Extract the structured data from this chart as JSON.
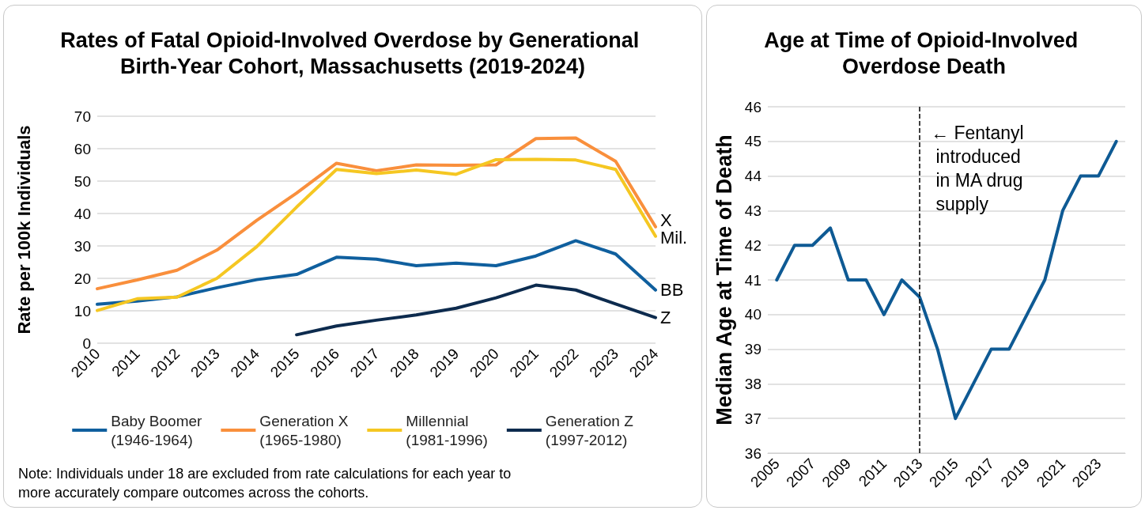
{
  "chart_data": [
    {
      "type": "line",
      "title": "Rates of Fatal Opioid-Involved Overdose by Generational Birth-Year Cohort, Massachusetts (2019-2024)",
      "ylabel": "Rate per 100k Individuals",
      "categories": [
        "2010",
        "2011",
        "2012",
        "2013",
        "2014",
        "2015",
        "2016",
        "2017",
        "2018",
        "2019",
        "2020",
        "2021",
        "2022",
        "2023",
        "2024"
      ],
      "series": [
        {
          "name": "Baby Boomer\n(1946-1964)",
          "color": "#0f5f9e",
          "values": [
            12.0,
            13.0,
            14.3,
            17.1,
            19.6,
            21.2,
            26.5,
            25.9,
            23.9,
            24.7,
            23.9,
            26.9,
            31.6,
            27.5,
            16.4
          ]
        },
        {
          "name": "Generation X\n(1965-1980)",
          "color": "#f98f3c",
          "values": [
            16.8,
            19.5,
            22.5,
            28.7,
            37.9,
            46.3,
            55.5,
            53.2,
            55.0,
            54.9,
            55.0,
            63.1,
            63.3,
            56.1,
            35.9
          ]
        },
        {
          "name": "Millennial\n(1981-1996)",
          "color": "#f5c722",
          "values": [
            10.1,
            13.7,
            14.2,
            20.0,
            29.8,
            42.0,
            53.6,
            52.3,
            53.4,
            52.1,
            56.6,
            56.7,
            56.5,
            53.6,
            33.0
          ]
        },
        {
          "name": "Generation Z\n(1997-2012)",
          "color": "#0d2b4e",
          "values": [
            null,
            null,
            null,
            null,
            null,
            2.6,
            5.3,
            7.1,
            8.7,
            10.8,
            14.0,
            17.9,
            16.4,
            12.1,
            7.9
          ]
        }
      ],
      "ylim": [
        0,
        70
      ],
      "yticks": [
        0,
        10,
        20,
        30,
        40,
        50,
        60,
        70
      ],
      "grid": "y",
      "legend": "bottom",
      "marker": "none",
      "line_style": "solid",
      "annotations": [
        {
          "text": "X",
          "x": "2024",
          "y": 35.9
        },
        {
          "text": "Mil.",
          "x": "2024",
          "y": 33.0
        },
        {
          "text": "BB",
          "x": "2024",
          "y": 16.4
        },
        {
          "text": "Z",
          "x": "2024",
          "y": 7.9
        },
        "Note: Individuals under 18 are excluded from rate calculations for each year to more accurately compare outcomes across the cohorts."
      ]
    },
    {
      "type": "line",
      "title": "Age at Time of Opioid-Involved Overdose Death",
      "ylabel": "Median Age at Time of Death",
      "categories": [
        "2005",
        null,
        "2007",
        null,
        "2009",
        null,
        "2011",
        null,
        "2013",
        null,
        "2015",
        null,
        "2017",
        null,
        "2019",
        null,
        "2021",
        null,
        "2023",
        null
      ],
      "series": [
        {
          "color": "#0e5a94",
          "values": [
            41,
            42,
            42,
            42.5,
            41,
            41,
            40,
            41,
            40.5,
            39,
            37,
            38,
            39,
            39,
            40,
            41,
            43,
            44,
            44,
            45
          ]
        }
      ],
      "ylim": [
        36,
        46
      ],
      "yticks": [
        36,
        37,
        38,
        39,
        40,
        41,
        42,
        43,
        44,
        45,
        46
      ],
      "grid": "y",
      "marker": "none",
      "line_style": "solid",
      "ref_lines": [
        {
          "axis": "x",
          "value": "2013",
          "label": "← Fentanyl introduced in MA drug supply",
          "color": "#000000",
          "line_style": "dashed"
        }
      ]
    }
  ]
}
